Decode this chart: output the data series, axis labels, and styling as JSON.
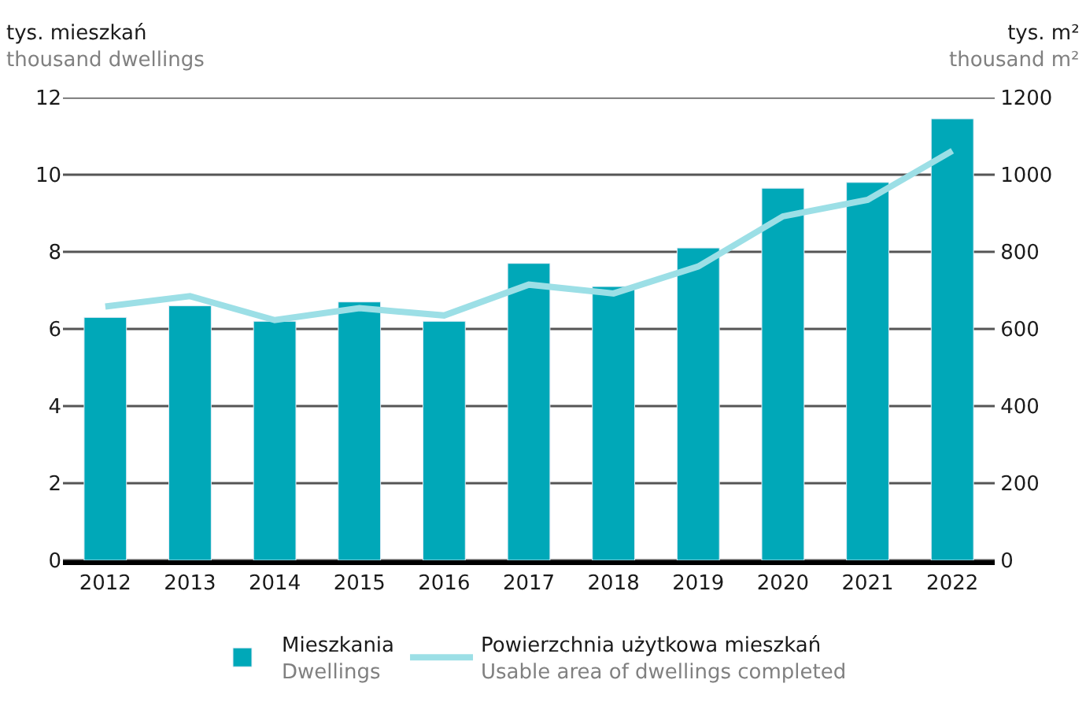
{
  "chart_data": {
    "type": "bar",
    "ylabel": "tys. mieszkań\nthousand dwellings",
    "y2label": "tys. m²\nthousand m²",
    "categories": [
      "2012",
      "2013",
      "2014",
      "2015",
      "2016",
      "2017",
      "2018",
      "2019",
      "2020",
      "2021",
      "2022"
    ],
    "series": [
      {
        "name": "Mieszkania\nDwellings",
        "color": "#00a8b8",
        "values": [
          6.3,
          6.6,
          6.2,
          6.7,
          6.2,
          7.7,
          7.1,
          8.1,
          9.65,
          9.8,
          11.45
        ]
      },
      {
        "name": "Powierzchnia użytkowa mieszkań\nUsable area of dwellings completed",
        "type": "line",
        "axis": "y2",
        "color": "#9cdfe6",
        "values": [
          658,
          685,
          623,
          654,
          635,
          715,
          692,
          762,
          892,
          935,
          1062
        ]
      }
    ],
    "ylim": [
      0,
      12
    ],
    "yticks": [
      0,
      2,
      4,
      6,
      8,
      10,
      12
    ],
    "y2lim": [
      0,
      1200
    ],
    "y2ticks": [
      0,
      200,
      400,
      600,
      800,
      1000,
      1200
    ],
    "grid": "y",
    "legend": "bottom",
    "line_style": "solid",
    "marker": "none"
  }
}
